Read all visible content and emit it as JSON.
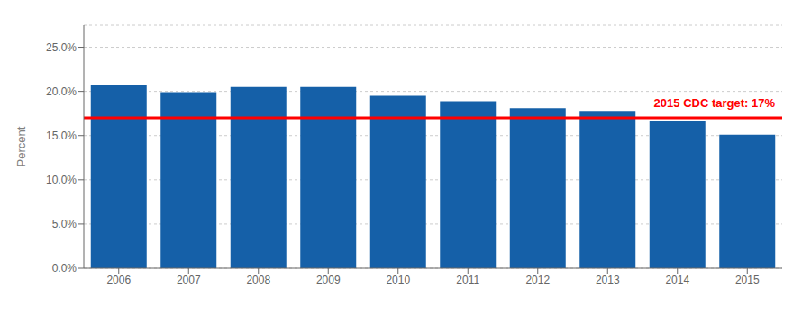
{
  "chart_data": {
    "type": "bar",
    "ylabel": "Percent",
    "categories": [
      "2006",
      "2007",
      "2008",
      "2009",
      "2010",
      "2011",
      "2012",
      "2013",
      "2014",
      "2015"
    ],
    "values": [
      0.207,
      0.199,
      0.205,
      0.205,
      0.195,
      0.189,
      0.181,
      0.178,
      0.167,
      0.151
    ],
    "color": "#1560a8",
    "ylim": [
      0,
      0.275
    ],
    "yticks": [
      {
        "value": 0.0,
        "label": "0.0%"
      },
      {
        "value": 0.05,
        "label": "5.0%"
      },
      {
        "value": 0.1,
        "label": "10.0%"
      },
      {
        "value": 0.15,
        "label": "15.0%"
      },
      {
        "value": 0.2,
        "label": "20.0%"
      },
      {
        "value": 0.25,
        "label": "25.0%"
      }
    ],
    "grid": true,
    "reference_line": {
      "value": 0.17,
      "label": "2015 CDC target: 17%",
      "color": "#ff0000"
    }
  }
}
